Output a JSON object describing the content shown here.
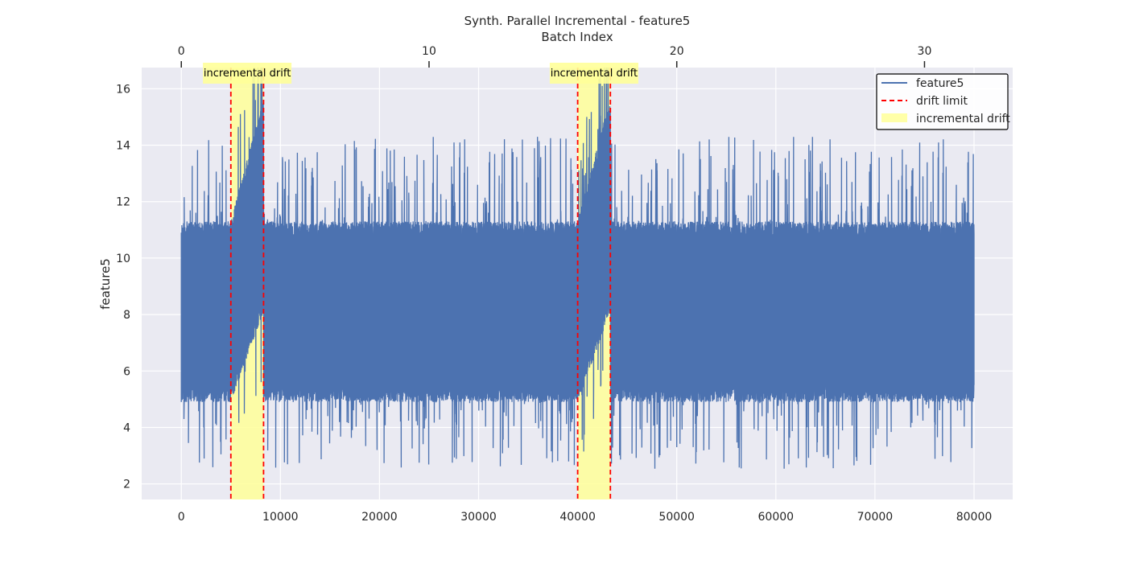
{
  "chart_data": {
    "type": "line",
    "title": "Synth. Parallel Incremental - feature5",
    "top_axis_label": "Batch Index",
    "xlabel": "",
    "ylabel": "feature5",
    "xlim": [
      -4000,
      83900
    ],
    "ylim": [
      1.45,
      16.75
    ],
    "top_xlim": [
      -1.6,
      33.56
    ],
    "x_ticks": [
      0,
      10000,
      20000,
      30000,
      40000,
      50000,
      60000,
      70000,
      80000
    ],
    "x_tick_labels": [
      "0",
      "10000",
      "20000",
      "30000",
      "40000",
      "50000",
      "60000",
      "70000",
      "80000"
    ],
    "top_ticks": [
      0,
      10,
      20,
      30
    ],
    "top_tick_labels": [
      "0",
      "10",
      "20",
      "30"
    ],
    "y_ticks": [
      2,
      4,
      6,
      8,
      10,
      12,
      14,
      16
    ],
    "y_tick_labels": [
      "2",
      "4",
      "6",
      "8",
      "10",
      "12",
      "14",
      "16"
    ],
    "grid": true,
    "series": [
      {
        "name": "feature5",
        "color": "#4c72b0",
        "x_range": [
          0,
          80000
        ],
        "baseline_mean": 8.0,
        "baseline_min": 4.9,
        "baseline_max": 11.3,
        "spike_high_max": 14.3,
        "spike_low_min": 2.1
      }
    ],
    "drift_regions": [
      {
        "start": 5000,
        "end": 8300,
        "label": "incremental drift",
        "peak": 15.6
      },
      {
        "start": 40000,
        "end": 43300,
        "label": "incremental drift",
        "peak": 16.1
      }
    ],
    "drift_limit_color": "#ff0000",
    "drift_fill_color": "#ffff99",
    "legend": {
      "placement": "top-right",
      "entries": [
        "feature5",
        "drift limit",
        "incremental drift"
      ]
    }
  }
}
